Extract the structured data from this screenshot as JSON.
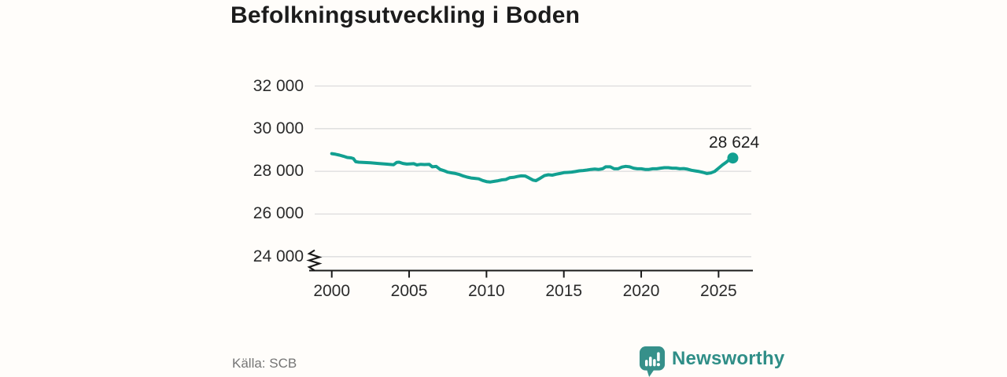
{
  "title": "Befolkningsutveckling i Boden",
  "source": "Källa: SCB",
  "branding": {
    "logo_text": "Newsworthy",
    "brand_color": "#2f8e87"
  },
  "chart_data": {
    "type": "line",
    "title": "Befolkningsutveckling i Boden",
    "xlabel": "",
    "ylabel": "",
    "grid": "horizontal",
    "legend": "none",
    "axis_break": true,
    "line_color": "#12a091",
    "xlim": [
      1999.5,
      2027.2
    ],
    "ylim": [
      24000,
      32600
    ],
    "xticks": [
      2000,
      2005,
      2010,
      2015,
      2020,
      2025
    ],
    "xtick_labels": [
      "2000",
      "2005",
      "2010",
      "2015",
      "2020",
      "2025"
    ],
    "yticks": [
      24000,
      26000,
      28000,
      30000,
      32000
    ],
    "ytick_labels": [
      "24 000",
      "26 000",
      "28 000",
      "30 000",
      "32 000"
    ],
    "end_label": "28 624",
    "end_value": 28624,
    "series": [
      {
        "name": "Befolkning",
        "x": [
          2000.0,
          2000.25,
          2000.5,
          2000.75,
          2001.0,
          2001.25,
          2001.4,
          2001.55,
          2001.75,
          2002.0,
          2002.5,
          2003.0,
          2003.5,
          2004.0,
          2004.2,
          2004.35,
          2004.6,
          2004.85,
          2005.1,
          2005.3,
          2005.5,
          2005.75,
          2006.0,
          2006.3,
          2006.5,
          2006.75,
          2007.0,
          2007.25,
          2007.5,
          2007.75,
          2008.0,
          2008.25,
          2008.5,
          2008.75,
          2009.0,
          2009.25,
          2009.5,
          2009.75,
          2010.0,
          2010.25,
          2010.5,
          2010.75,
          2011.0,
          2011.25,
          2011.5,
          2011.75,
          2012.0,
          2012.25,
          2012.5,
          2012.75,
          2013.0,
          2013.2,
          2013.5,
          2013.75,
          2014.0,
          2014.25,
          2014.5,
          2014.75,
          2015.0,
          2015.25,
          2015.5,
          2015.75,
          2016.0,
          2016.25,
          2016.5,
          2016.75,
          2017.0,
          2017.25,
          2017.5,
          2017.7,
          2018.0,
          2018.25,
          2018.5,
          2018.75,
          2019.0,
          2019.25,
          2019.5,
          2019.75,
          2020.0,
          2020.25,
          2020.5,
          2020.75,
          2021.0,
          2021.25,
          2021.5,
          2021.75,
          2022.0,
          2022.25,
          2022.5,
          2022.75,
          2023.0,
          2023.25,
          2023.5,
          2023.75,
          2024.0,
          2024.25,
          2024.5,
          2024.75,
          2025.0,
          2025.25,
          2025.5,
          2025.7,
          2025.92
        ],
        "values": [
          28830,
          28800,
          28760,
          28710,
          28650,
          28630,
          28600,
          28450,
          28430,
          28420,
          28400,
          28370,
          28340,
          28310,
          28420,
          28430,
          28370,
          28340,
          28350,
          28360,
          28300,
          28330,
          28320,
          28330,
          28210,
          28230,
          28090,
          28030,
          27960,
          27930,
          27900,
          27850,
          27780,
          27730,
          27690,
          27670,
          27650,
          27570,
          27520,
          27500,
          27530,
          27560,
          27600,
          27620,
          27700,
          27720,
          27760,
          27790,
          27780,
          27690,
          27590,
          27565,
          27690,
          27800,
          27840,
          27820,
          27865,
          27900,
          27940,
          27950,
          27965,
          27990,
          28025,
          28040,
          28060,
          28090,
          28110,
          28090,
          28120,
          28210,
          28210,
          28120,
          28120,
          28200,
          28235,
          28210,
          28150,
          28120,
          28120,
          28090,
          28090,
          28120,
          28120,
          28150,
          28170,
          28170,
          28150,
          28150,
          28120,
          28130,
          28100,
          28050,
          28020,
          27990,
          27950,
          27900,
          27925,
          28000,
          28150,
          28300,
          28430,
          28550,
          28624
        ]
      }
    ]
  }
}
